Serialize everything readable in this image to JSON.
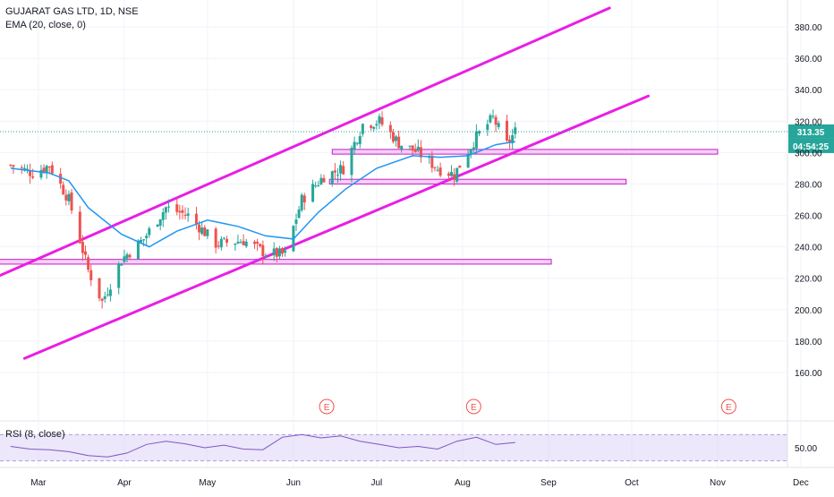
{
  "legend": {
    "symbol": "GUJARAT GAS LTD, 1D, NSE",
    "indicator": "EMA (20, close, 0)",
    "rsi": "RSI (8, close)"
  },
  "price_axis": {
    "ticks": [
      "380.00",
      "360.00",
      "340.00",
      "320.00",
      "300.00",
      "280.00",
      "260.00",
      "240.00",
      "220.00",
      "200.00",
      "180.00",
      "160.00"
    ],
    "last_price": "313.35",
    "countdown": "04:54:25"
  },
  "rsi_axis": {
    "tick": "50.00"
  },
  "time_axis": {
    "labels": [
      "Mar",
      "Apr",
      "May",
      "Jun",
      "Jul",
      "Aug",
      "Sep",
      "Oct",
      "Nov",
      "Dec"
    ]
  },
  "earnings_marker": "E",
  "colors": {
    "up": "#26a69a",
    "down": "#ef5350",
    "ema": "#2196f3",
    "channel": "#e91ee6",
    "zone_fill": "#f3a6f2",
    "zone_stroke": "#c020c0",
    "rsi_line": "#7e57c2",
    "last_price_bg": "#26a69a",
    "earnings": "#ef5350",
    "grid": "#f0f3fa"
  },
  "chart_data": {
    "type": "candlestick",
    "title": "GUJARAT GAS LTD, 1D, NSE",
    "ylim": [
      150,
      390
    ],
    "yticks": [
      380,
      360,
      340,
      320,
      300,
      280,
      260,
      240,
      220,
      200,
      180,
      160
    ],
    "x_range": [
      "2020-02-20",
      "2020-12-15"
    ],
    "last_price": 313.35,
    "close_approx": [
      {
        "date": "2020-02-20",
        "close": 292
      },
      {
        "date": "2020-02-28",
        "close": 287
      },
      {
        "date": "2020-03-05",
        "close": 292
      },
      {
        "date": "2020-03-12",
        "close": 270
      },
      {
        "date": "2020-03-19",
        "close": 225
      },
      {
        "date": "2020-03-24",
        "close": 205
      },
      {
        "date": "2020-03-31",
        "close": 232
      },
      {
        "date": "2020-04-08",
        "close": 245
      },
      {
        "date": "2020-04-16",
        "close": 265
      },
      {
        "date": "2020-04-24",
        "close": 260
      },
      {
        "date": "2020-05-04",
        "close": 242
      },
      {
        "date": "2020-05-14",
        "close": 244
      },
      {
        "date": "2020-05-22",
        "close": 236
      },
      {
        "date": "2020-05-29",
        "close": 235
      },
      {
        "date": "2020-06-04",
        "close": 270
      },
      {
        "date": "2020-06-12",
        "close": 285
      },
      {
        "date": "2020-06-19",
        "close": 290
      },
      {
        "date": "2020-06-26",
        "close": 318
      },
      {
        "date": "2020-07-02",
        "close": 320
      },
      {
        "date": "2020-07-09",
        "close": 306
      },
      {
        "date": "2020-07-16",
        "close": 300
      },
      {
        "date": "2020-07-23",
        "close": 290
      },
      {
        "date": "2020-07-29",
        "close": 286
      },
      {
        "date": "2020-08-06",
        "close": 310
      },
      {
        "date": "2020-08-12",
        "close": 322
      },
      {
        "date": "2020-08-17",
        "close": 305
      },
      {
        "date": "2020-08-20",
        "close": 313.35
      }
    ],
    "ema_20": [
      {
        "date": "2020-02-20",
        "value": 290
      },
      {
        "date": "2020-03-05",
        "value": 287
      },
      {
        "date": "2020-03-12",
        "value": 282
      },
      {
        "date": "2020-03-19",
        "value": 265
      },
      {
        "date": "2020-03-31",
        "value": 248
      },
      {
        "date": "2020-04-10",
        "value": 240
      },
      {
        "date": "2020-04-20",
        "value": 250
      },
      {
        "date": "2020-05-01",
        "value": 257
      },
      {
        "date": "2020-05-12",
        "value": 253
      },
      {
        "date": "2020-05-22",
        "value": 247
      },
      {
        "date": "2020-06-01",
        "value": 245
      },
      {
        "date": "2020-06-10",
        "value": 262
      },
      {
        "date": "2020-06-20",
        "value": 277
      },
      {
        "date": "2020-07-01",
        "value": 290
      },
      {
        "date": "2020-07-14",
        "value": 298
      },
      {
        "date": "2020-07-24",
        "value": 297
      },
      {
        "date": "2020-08-03",
        "value": 298
      },
      {
        "date": "2020-08-13",
        "value": 305
      },
      {
        "date": "2020-08-20",
        "value": 307
      }
    ],
    "channel_lines": [
      {
        "start": {
          "date": "2020-02-10",
          "price": 217
        },
        "end": {
          "date": "2020-09-23",
          "price": 392
        }
      },
      {
        "start": {
          "date": "2020-02-25",
          "price": 169
        },
        "end": {
          "date": "2020-10-07",
          "price": 336
        }
      }
    ],
    "zones": [
      {
        "from": "2020-06-15",
        "to": "2020-11-01",
        "low": 299,
        "high": 302
      },
      {
        "from": "2020-06-14",
        "to": "2020-09-29",
        "low": 280,
        "high": 283
      },
      {
        "from": "2020-02-10",
        "to": "2020-09-02",
        "low": 229,
        "high": 232
      }
    ],
    "earnings_dates": [
      "2020-06-13",
      "2020-08-05",
      "2020-11-05"
    ],
    "rsi": {
      "period": 8,
      "tick": 50,
      "band": [
        30,
        70
      ],
      "values_approx": [
        52,
        48,
        47,
        44,
        38,
        36,
        42,
        55,
        60,
        56,
        50,
        54,
        48,
        47,
        66,
        70,
        65,
        68,
        60,
        55,
        50,
        52,
        48,
        60,
        66,
        55,
        58
      ]
    }
  }
}
